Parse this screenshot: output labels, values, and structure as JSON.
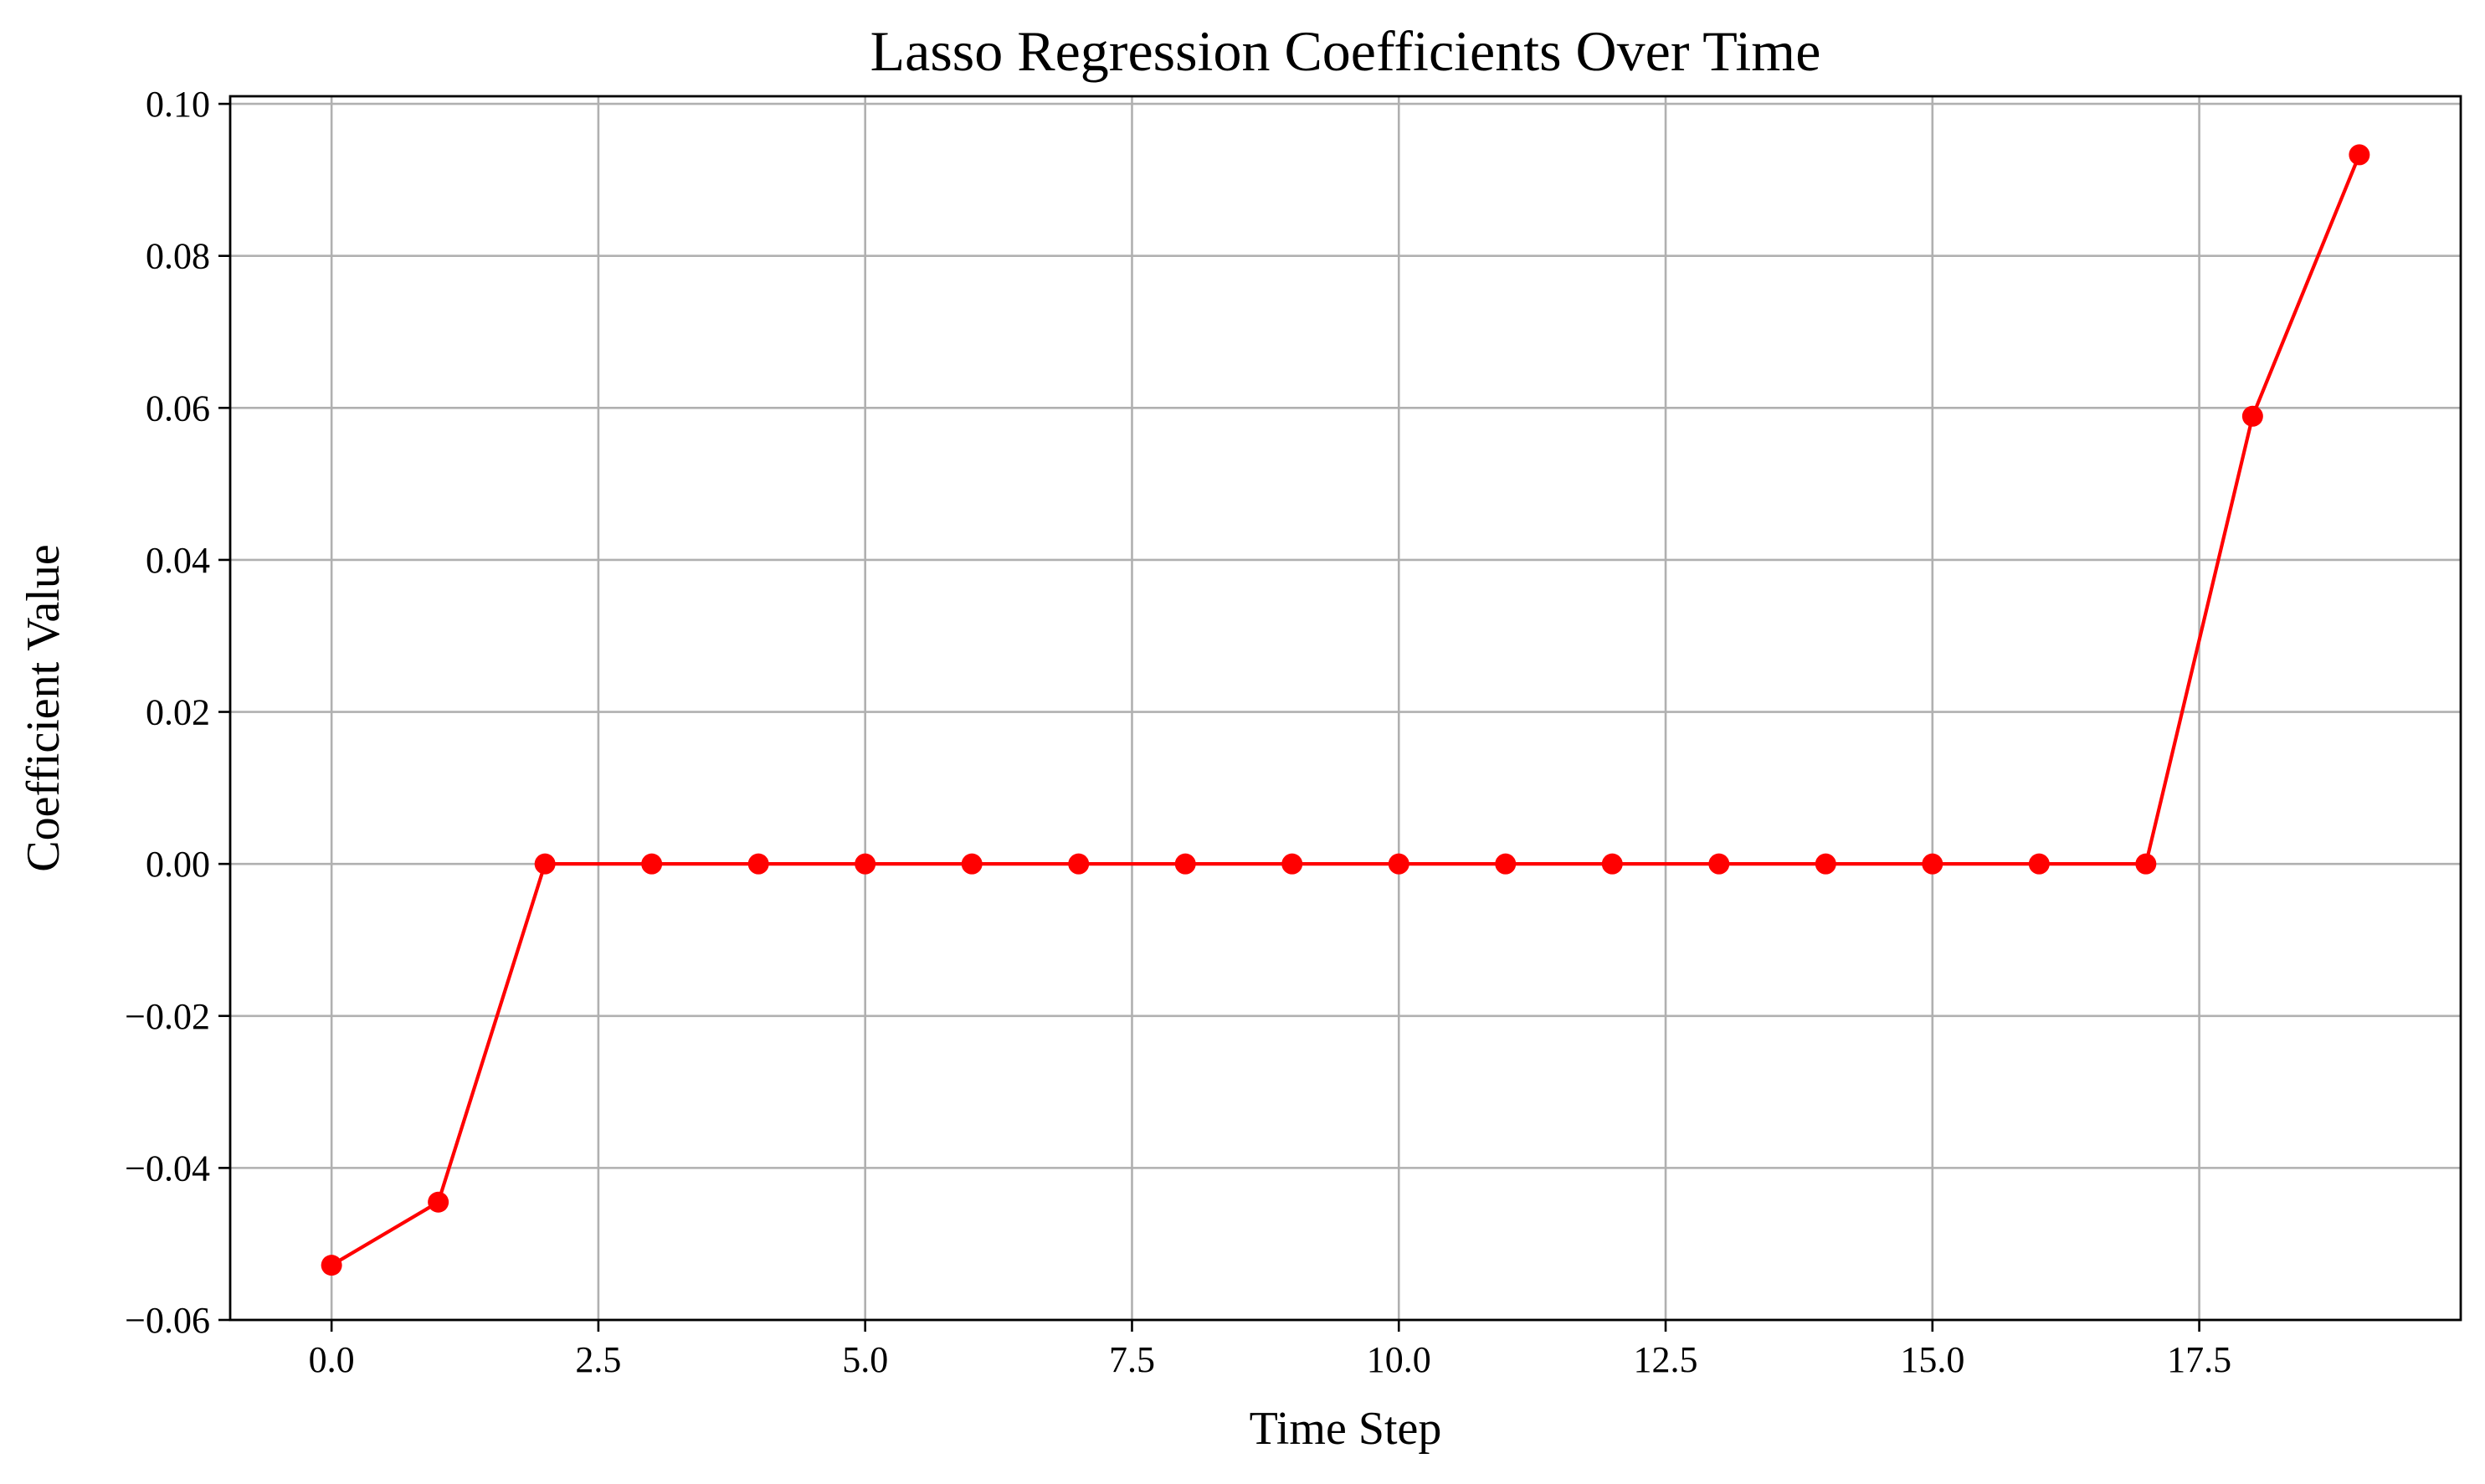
{
  "chart_data": {
    "type": "line",
    "title": "Lasso Regression Coefficients Over Time",
    "xlabel": "Time Step",
    "ylabel": "Coefficient Value",
    "xlim": [
      -0.95,
      19.95
    ],
    "ylim": [
      -0.06,
      0.101
    ],
    "xticks": [
      0.0,
      2.5,
      5.0,
      7.5,
      10.0,
      12.5,
      15.0,
      17.5
    ],
    "xtick_labels": [
      "0.0",
      "2.5",
      "5.0",
      "7.5",
      "10.0",
      "12.5",
      "15.0",
      "17.5"
    ],
    "yticks": [
      -0.06,
      -0.04,
      -0.02,
      0.0,
      0.02,
      0.04,
      0.06,
      0.08,
      0.1
    ],
    "ytick_labels": [
      "−0.06",
      "−0.04",
      "−0.02",
      "0.00",
      "0.02",
      "0.04",
      "0.06",
      "0.08",
      "0.10"
    ],
    "grid": true,
    "x": [
      0,
      1,
      2,
      3,
      4,
      5,
      6,
      7,
      8,
      9,
      10,
      11,
      12,
      13,
      14,
      15,
      16,
      17,
      18,
      19
    ],
    "series": [
      {
        "values": [
          -0.0528,
          -0.0445,
          0.0,
          0.0,
          0.0,
          0.0,
          0.0,
          0.0,
          0.0,
          0.0,
          0.0,
          0.0,
          0.0,
          0.0,
          0.0,
          0.0,
          0.0,
          0.0,
          0.0589,
          0.0933
        ],
        "color": "#ff0000",
        "marker": "circle"
      }
    ]
  }
}
